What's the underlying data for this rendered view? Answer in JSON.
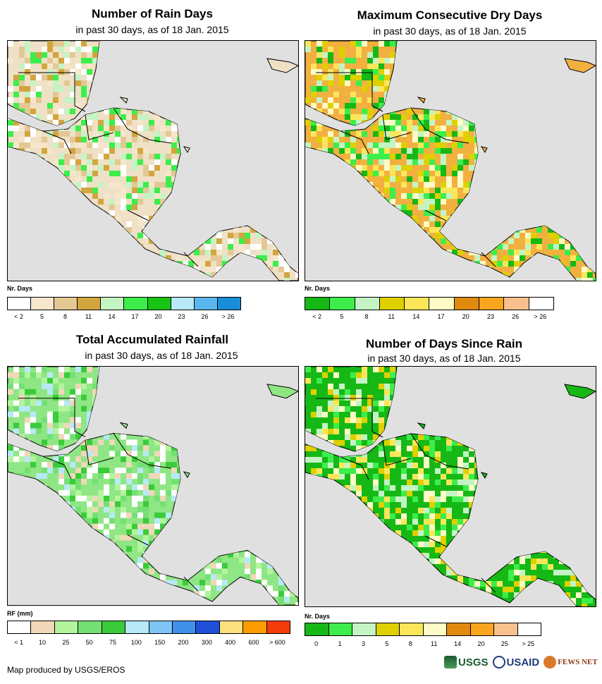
{
  "panels": [
    {
      "title": "Number of Rain Days",
      "subtitle": "in past 30 days, as of 18 Jan. 2015",
      "legend_title": "Nr. Days",
      "legend_colors": [
        "#ffffff",
        "#f5e6cc",
        "#e3c894",
        "#d3a53e",
        "#c4f4c4",
        "#3ded4b",
        "#16c416",
        "#b7e9f7",
        "#59b6ee",
        "#198ed6"
      ],
      "legend_labels": [
        "< 2",
        "5",
        "8",
        "11",
        "14",
        "17",
        "20",
        "23",
        "26",
        "> 26"
      ],
      "land_tint": "#efe1c6"
    },
    {
      "title": "Maximum Consecutive Dry Days",
      "subtitle": "in past 30 days, as of 18 Jan. 2015",
      "legend_title": "Nr. Days",
      "legend_colors": [
        "#16b816",
        "#3ded4b",
        "#c4f4c4",
        "#dfd000",
        "#fbe65a",
        "#fffbc6",
        "#e08a10",
        "#fba51f",
        "#f9c08e",
        "#ffffff"
      ],
      "legend_labels": [
        "< 2",
        "5",
        "8",
        "11",
        "14",
        "17",
        "20",
        "23",
        "26",
        "> 26"
      ],
      "land_tint": "#f2b040"
    },
    {
      "title": "Total Accumulated Rainfall",
      "subtitle": "in past 30 days, as of 18 Jan. 2015",
      "legend_title": "RF (mm)",
      "legend_colors": [
        "#ffffff",
        "#f0d8b8",
        "#b4f49c",
        "#74e074",
        "#3acb3a",
        "#b7e9f7",
        "#7fc4f6",
        "#4090e8",
        "#1e50d8",
        "#fce080",
        "#fc9c00",
        "#f43c0c"
      ],
      "legend_labels": [
        "< 1",
        "10",
        "25",
        "50",
        "75",
        "100",
        "150",
        "200",
        "300",
        "400",
        "600",
        "> 600"
      ],
      "land_tint": "#8fe684"
    },
    {
      "title": "Number of Days Since Rain",
      "subtitle": "in past 30 days, as of 18 Jan. 2015",
      "legend_title": "Nr. Days",
      "legend_colors": [
        "#16b816",
        "#3ded4b",
        "#c4f4c4",
        "#dfd000",
        "#fbe65a",
        "#fffbc6",
        "#e08a10",
        "#fba51f",
        "#f9c08e",
        "#ffffff"
      ],
      "legend_labels": [
        "0",
        "1",
        "3",
        "5",
        "8",
        "11",
        "14",
        "20",
        "25",
        "> 25"
      ],
      "land_tint": "#16b816"
    }
  ],
  "credit": "Map produced by USGS/EROS",
  "logos": [
    "USGS",
    "USAID",
    "FEWS NET"
  ],
  "colors": {
    "ocean": "#e0e0e0",
    "border": "#000000"
  }
}
